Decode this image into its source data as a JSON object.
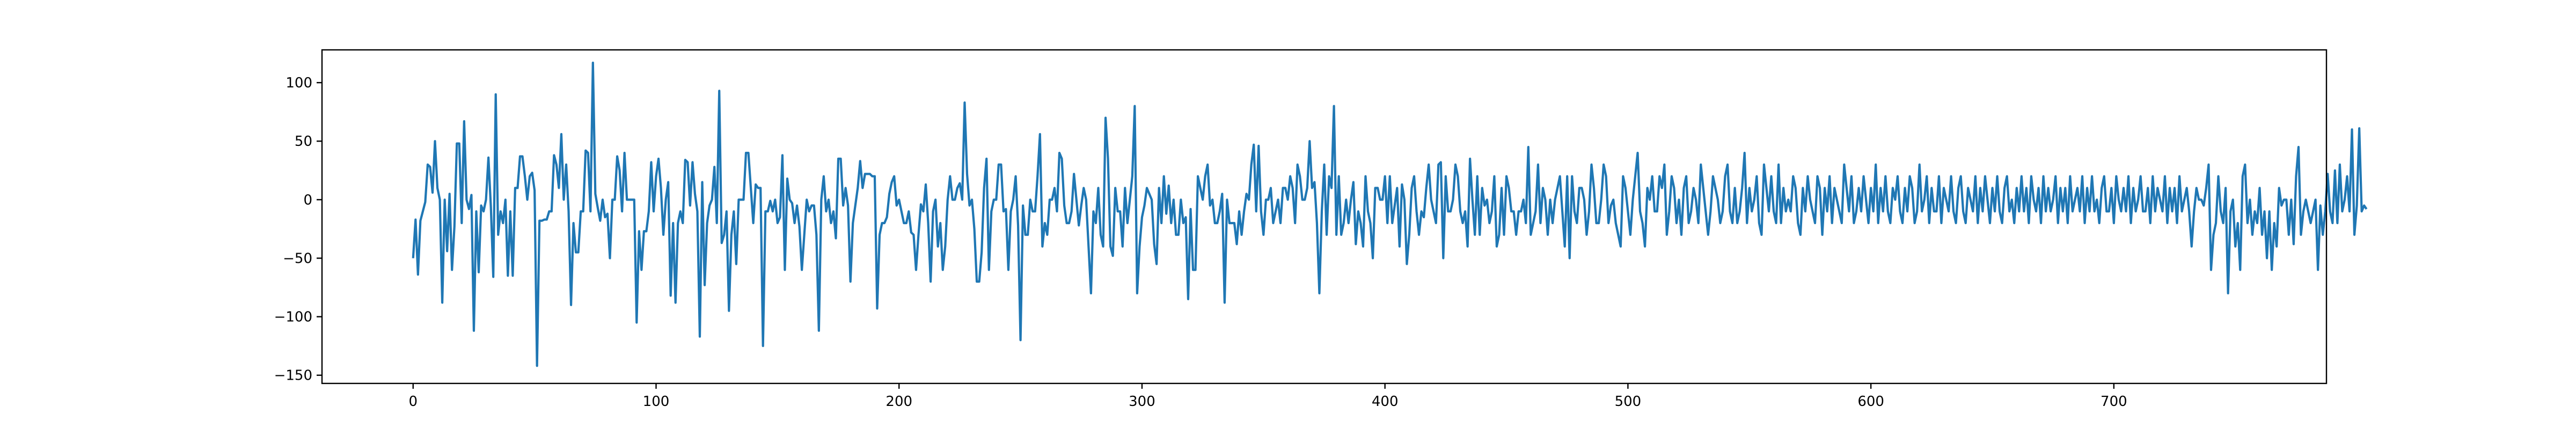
{
  "chart_data": {
    "type": "line",
    "title": "",
    "xlabel": "",
    "ylabel": "",
    "xlim": [
      -37.5,
      787.5
    ],
    "ylim": [
      -157,
      128
    ],
    "grid": false,
    "legend": "none",
    "x_ticks": [
      0,
      100,
      200,
      300,
      400,
      500,
      600,
      700
    ],
    "x_tick_labels": [
      "0",
      "100",
      "200",
      "300",
      "400",
      "500",
      "600",
      "700"
    ],
    "y_ticks": [
      100,
      50,
      0,
      -50,
      -100,
      -150
    ],
    "y_tick_labels": [
      "100",
      "50",
      "0",
      "−50",
      "−100",
      "−150"
    ],
    "colors": {
      "line": "#1f77b4",
      "frame": "#000000",
      "background": "#ffffff"
    },
    "x_start": 0,
    "x_step": 1,
    "series": [
      {
        "name": "",
        "values": [
          -50,
          -17,
          -64,
          -18,
          -10,
          -2,
          30,
          28,
          6,
          50,
          10,
          0,
          -88,
          0,
          -44,
          5,
          -60,
          -23,
          48,
          48,
          -20,
          67,
          0,
          -8,
          4,
          -112,
          -10,
          -62,
          -5,
          -10,
          0,
          36,
          -6,
          -66,
          90,
          -30,
          -10,
          -20,
          0,
          -65,
          -10,
          -65,
          10,
          10,
          37,
          37,
          20,
          0,
          20,
          23,
          8,
          -142,
          -18,
          -18,
          -17,
          -17,
          -10,
          -10,
          38,
          30,
          10,
          56,
          0,
          30,
          -10,
          -90,
          -20,
          -45,
          -45,
          -10,
          -10,
          42,
          40,
          -10,
          117,
          5,
          -7,
          -18,
          0,
          -15,
          -12,
          -50,
          0,
          0,
          37,
          25,
          -10,
          40,
          0,
          0,
          0,
          0,
          -105,
          -27,
          -60,
          -27,
          -27,
          -10,
          32,
          -10,
          20,
          35,
          10,
          -30,
          0,
          15,
          -82,
          -20,
          -88,
          -20,
          -10,
          -20,
          34,
          32,
          -5,
          32,
          5,
          -10,
          -117,
          15,
          -73,
          -20,
          -5,
          0,
          28,
          -20,
          93,
          -37,
          -30,
          -10,
          -95,
          -30,
          -10,
          -55,
          0,
          0,
          0,
          40,
          40,
          10,
          -20,
          13,
          10,
          10,
          -125,
          -10,
          -10,
          -1,
          -10,
          0,
          -20,
          -15,
          38,
          -60,
          18,
          0,
          -3,
          -20,
          -5,
          -23,
          -60,
          -30,
          0,
          -10,
          -5,
          -5,
          -30,
          -112,
          0,
          20,
          -10,
          0,
          -20,
          -10,
          -33,
          35,
          35,
          -5,
          10,
          -5,
          -70,
          -20,
          -5,
          10,
          33,
          10,
          22,
          22,
          22,
          20,
          20,
          -93,
          -30,
          -20,
          -20,
          -15,
          5,
          15,
          20,
          -5,
          0,
          -10,
          -20,
          -20,
          -10,
          -28,
          -30,
          -60,
          -30,
          -4,
          -10,
          13,
          -20,
          -70,
          -10,
          0,
          -40,
          -20,
          -60,
          -40,
          0,
          20,
          0,
          0,
          10,
          14,
          0,
          83,
          22,
          -5,
          0,
          -25,
          -70,
          -70,
          -45,
          10,
          35,
          -60,
          -10,
          0,
          0,
          30,
          30,
          -10,
          -8,
          -60,
          -10,
          0,
          20,
          -22,
          -120,
          -5,
          -30,
          -30,
          0,
          -10,
          -10,
          20,
          56,
          -40,
          -20,
          -30,
          0,
          0,
          10,
          -10,
          40,
          35,
          -5,
          -20,
          -20,
          -10,
          22,
          0,
          -22,
          -5,
          10,
          0,
          -40,
          -80,
          -10,
          -20,
          10,
          -30,
          -40,
          70,
          35,
          -40,
          -48,
          10,
          -10,
          -10,
          -40,
          10,
          -20,
          0,
          20,
          80,
          -80,
          -40,
          -15,
          -5,
          10,
          5,
          0,
          -38,
          -55,
          10,
          -20,
          20,
          -12,
          12,
          -20,
          0,
          -30,
          -30,
          0,
          -20,
          -15,
          -85,
          -8,
          -60,
          -60,
          20,
          10,
          0,
          20,
          30,
          -5,
          0,
          -20,
          -20,
          -10,
          5,
          -88,
          0,
          -20,
          -20,
          -20,
          -38,
          -10,
          -30,
          -10,
          5,
          0,
          30,
          47,
          -10,
          46,
          -10,
          -30,
          0,
          0,
          10,
          -20,
          -10,
          0,
          -20,
          10,
          10,
          0,
          20,
          10,
          -20,
          30,
          20,
          0,
          0,
          10,
          50,
          10,
          15,
          -20,
          -80,
          -10,
          30,
          -30,
          20,
          10,
          80,
          -30,
          20,
          -30,
          -20,
          0,
          -20,
          0,
          15,
          -38,
          -10,
          -20,
          -40,
          20,
          -10,
          -20,
          -50,
          10,
          10,
          0,
          0,
          20,
          -20,
          20,
          -20,
          -5,
          10,
          -40,
          13,
          0,
          -55,
          -30,
          10,
          20,
          -10,
          -30,
          -10,
          -15,
          10,
          30,
          0,
          -10,
          -20,
          30,
          32,
          -50,
          20,
          -10,
          -10,
          0,
          30,
          20,
          -10,
          -20,
          -10,
          -40,
          35,
          0,
          -30,
          20,
          -30,
          10,
          -5,
          0,
          -20,
          -10,
          20,
          -40,
          -30,
          10,
          -30,
          20,
          10,
          -10,
          -10,
          -30,
          -10,
          -10,
          0,
          -20,
          45,
          -30,
          -20,
          -10,
          30,
          -20,
          10,
          0,
          -30,
          0,
          -20,
          0,
          10,
          20,
          -10,
          -40,
          20,
          -50,
          20,
          -10,
          -20,
          10,
          10,
          0,
          -30,
          -10,
          30,
          10,
          -20,
          -20,
          0,
          30,
          20,
          -20,
          -5,
          0,
          -20,
          -30,
          -40,
          20,
          10,
          -10,
          -30,
          0,
          20,
          40,
          -10,
          -20,
          -40,
          10,
          0,
          20,
          -10,
          -10,
          20,
          10,
          30,
          -30,
          -10,
          20,
          10,
          -20,
          0,
          -30,
          10,
          20,
          -20,
          -10,
          10,
          0,
          -20,
          30,
          10,
          -10,
          -30,
          -10,
          20,
          10,
          0,
          -20,
          -10,
          20,
          30,
          -10,
          -20,
          10,
          -20,
          -10,
          10,
          40,
          -20,
          10,
          -10,
          0,
          20,
          -20,
          -30,
          30,
          10,
          -10,
          20,
          -10,
          -20,
          30,
          -20,
          10,
          -10,
          0,
          -10,
          20,
          10,
          -20,
          -30,
          10,
          -10,
          20,
          0,
          -10,
          -20,
          20,
          10,
          -30,
          10,
          -10,
          20,
          -20,
          10,
          0,
          -10,
          -20,
          30,
          10,
          -10,
          20,
          -20,
          -10,
          10,
          -10,
          20,
          0,
          -20,
          10,
          -10,
          30,
          -20,
          10,
          -10,
          20,
          -10,
          -20,
          10,
          0,
          20,
          -10,
          -20,
          10,
          -10,
          20,
          10,
          -20,
          -10,
          30,
          -10,
          0,
          20,
          -20,
          10,
          -10,
          -10,
          20,
          -20,
          10,
          0,
          -10,
          20,
          -10,
          -20,
          10,
          20,
          -10,
          -20,
          10,
          0,
          -10,
          20,
          -20,
          10,
          -10,
          20,
          0,
          -20,
          10,
          -10,
          20,
          -10,
          -20,
          10,
          20,
          -10,
          0,
          -20,
          10,
          -10,
          20,
          -10,
          10,
          -20,
          20,
          0,
          -10,
          10,
          -20,
          20,
          -10,
          10,
          -10,
          0,
          20,
          -20,
          10,
          -10,
          10,
          -20,
          20,
          -10,
          0,
          10,
          -10,
          20,
          -20,
          10,
          -10,
          20,
          -10,
          0,
          -20,
          10,
          20,
          -10,
          -10,
          10,
          -20,
          20,
          0,
          -10,
          10,
          -10,
          20,
          -20,
          10,
          -10,
          0,
          20,
          -10,
          -10,
          10,
          -20,
          20,
          -10,
          10,
          0,
          -10,
          20,
          -20,
          10,
          -10,
          10,
          -20,
          20,
          -10,
          0,
          10,
          -10,
          -40,
          -10,
          10,
          0,
          0,
          -5,
          10,
          30,
          -60,
          -30,
          -20,
          20,
          -10,
          -20,
          10,
          -80,
          -10,
          0,
          -40,
          -20,
          -60,
          20,
          30,
          -20,
          0,
          -30,
          -10,
          -20,
          10,
          -30,
          -10,
          -50,
          -10,
          -60,
          -20,
          -40,
          10,
          -5,
          0,
          0,
          -30,
          0,
          -38,
          20,
          45,
          -30,
          -10,
          0,
          -10,
          -20,
          -10,
          0,
          -60,
          -5,
          -30,
          -10,
          22,
          -10,
          -20,
          25,
          -20,
          30,
          -10,
          0,
          20,
          -10,
          60,
          -30,
          -5,
          61,
          -10,
          -5,
          -8
        ]
      }
    ]
  }
}
